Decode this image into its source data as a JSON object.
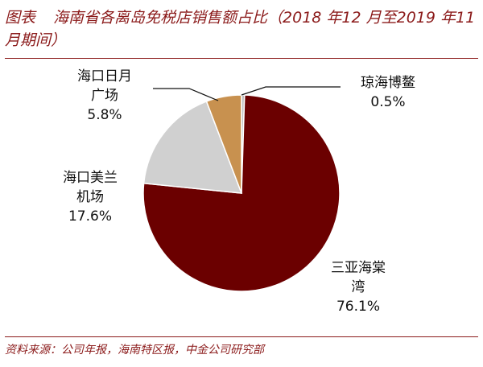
{
  "header": {
    "label": "图表",
    "title": "海南省各离岛免税店销售额占比（2018 年12 月至2019 年11 月期间）"
  },
  "source": "资料来源：公司年报，海南特区报，中金公司研究部",
  "chart_data": {
    "type": "pie",
    "title": "海南省各离岛免税店销售额占比（2018 年12 月至2019 年11 月期间）",
    "slices": [
      {
        "name": "琼海博鳌",
        "name_lines": [
          "琼海博鳌"
        ],
        "value": 0.5,
        "value_label": "0.5%",
        "color": "#bfbfbf"
      },
      {
        "name": "三亚海棠湾",
        "name_lines": [
          "三亚海棠",
          "湾"
        ],
        "value": 76.1,
        "value_label": "76.1%",
        "color": "#6b0000"
      },
      {
        "name": "海口美兰机场",
        "name_lines": [
          "海口美兰",
          "机场"
        ],
        "value": 17.6,
        "value_label": "17.6%",
        "color": "#d0d0d0"
      },
      {
        "name": "海口日月广场",
        "name_lines": [
          "海口日月",
          "广场"
        ],
        "value": 5.8,
        "value_label": "5.8%",
        "color": "#c8914f"
      }
    ],
    "start_angle": "12 o'clock",
    "direction": "clockwise"
  }
}
